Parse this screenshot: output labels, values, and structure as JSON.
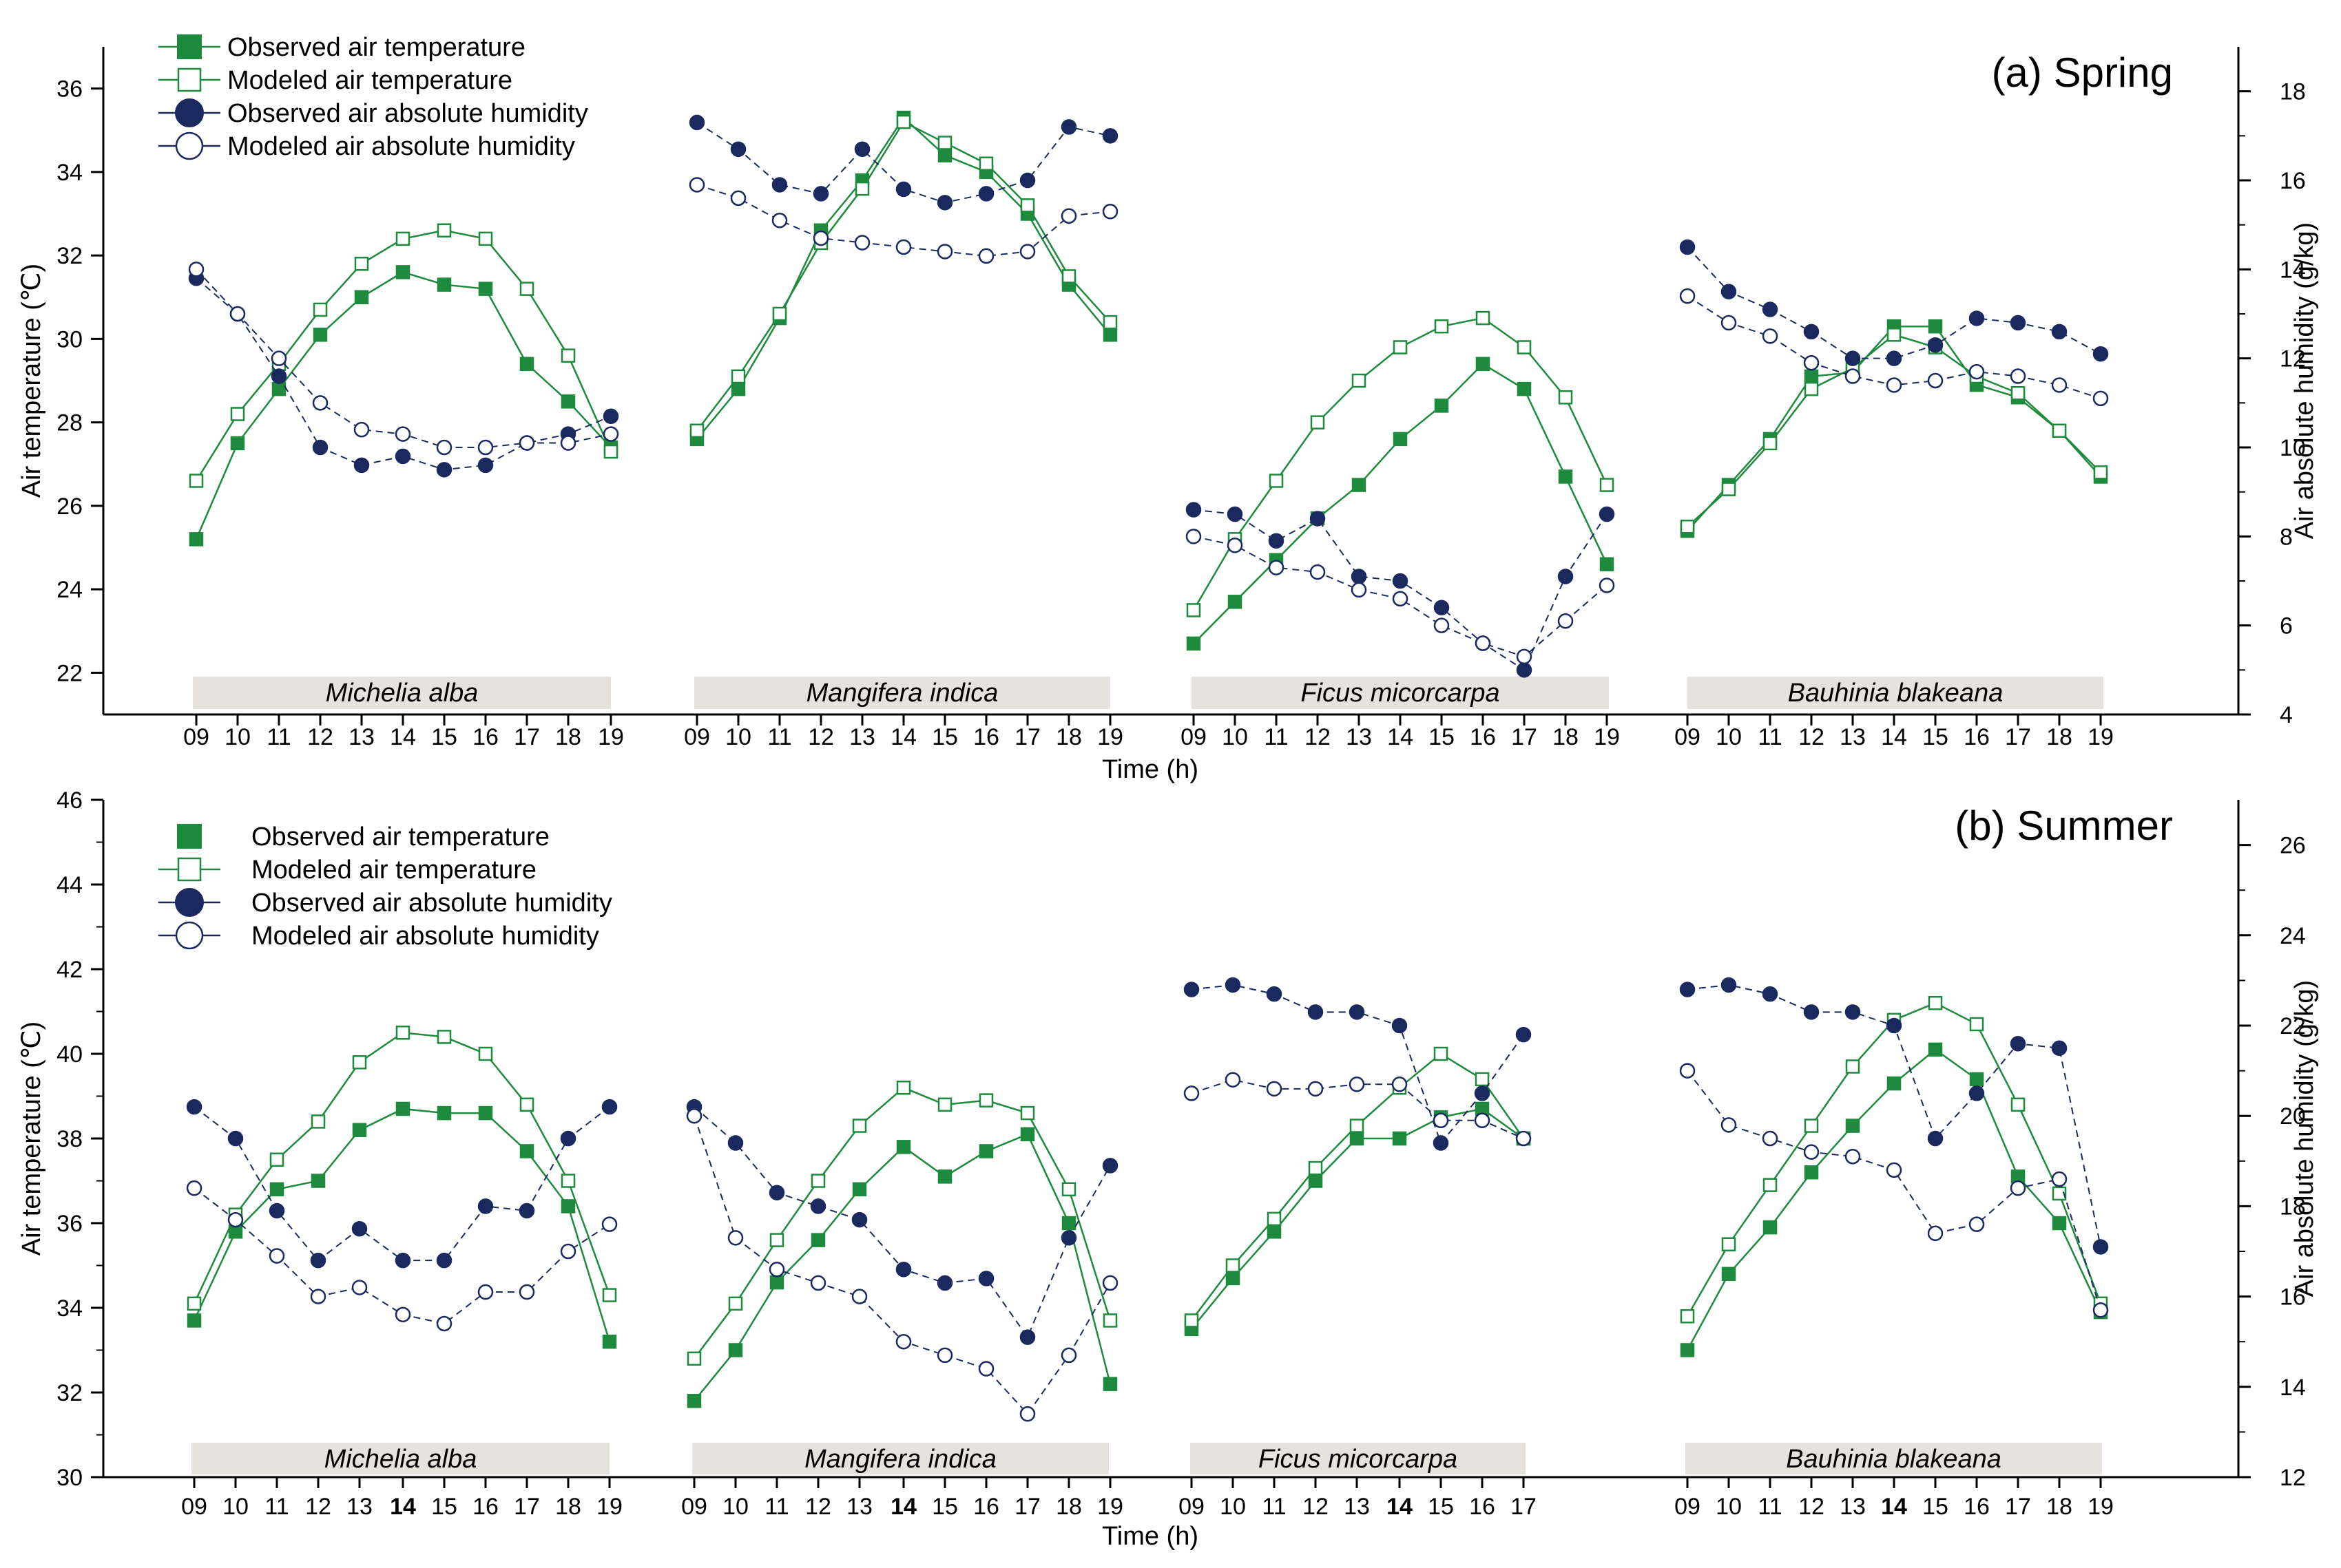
{
  "chart_data": [
    {
      "type": "line",
      "title": "(a) Spring",
      "xlabel": "Time (h)",
      "ylabel": "Air temperature (℃)",
      "y2label": "Air absolute humidity (g/kg)",
      "ylim": [
        21,
        37
      ],
      "y2lim": [
        4,
        19
      ],
      "yticks": [
        "22",
        "24",
        "26",
        "28",
        "30",
        "32",
        "34",
        "36"
      ],
      "y2ticks": [
        "4",
        "6",
        "8",
        "10",
        "12",
        "14",
        "16",
        "18"
      ],
      "legend": [
        "Observed air temperature",
        "Modeled air temperature",
        "Observed air absolute humidity",
        "Modeled air absolute humidity"
      ],
      "colors": {
        "temperature": "#1e8a3e",
        "humidity": "#1a2a5e"
      },
      "groups": [
        {
          "species": "Michelia alba",
          "x": [
            "09",
            "10",
            "11",
            "12",
            "13",
            "14",
            "15",
            "16",
            "17",
            "18",
            "19"
          ],
          "series": [
            {
              "name": "Observed air temperature",
              "values": [
                25.2,
                27.5,
                28.8,
                30.1,
                31.0,
                31.6,
                31.3,
                31.2,
                29.4,
                28.5,
                27.4
              ]
            },
            {
              "name": "Modeled air temperature",
              "values": [
                26.6,
                28.2,
                29.4,
                30.7,
                31.8,
                32.4,
                32.6,
                32.4,
                31.2,
                29.6,
                27.3
              ]
            },
            {
              "name": "Observed air absolute humidity",
              "values": [
                13.8,
                13.0,
                11.6,
                10.0,
                9.6,
                9.8,
                9.5,
                9.6,
                10.1,
                10.3,
                10.7
              ]
            },
            {
              "name": "Modeled air absolute humidity",
              "values": [
                14.0,
                13.0,
                12.0,
                11.0,
                10.4,
                10.3,
                10.0,
                10.0,
                10.1,
                10.1,
                10.3
              ]
            }
          ]
        },
        {
          "species": "Mangifera indica",
          "x": [
            "09",
            "10",
            "11",
            "12",
            "13",
            "14",
            "15",
            "16",
            "17",
            "18",
            "19"
          ],
          "series": [
            {
              "name": "Observed air temperature",
              "values": [
                27.6,
                28.8,
                30.5,
                32.6,
                33.8,
                35.3,
                34.4,
                34.0,
                33.0,
                31.3,
                30.1
              ]
            },
            {
              "name": "Modeled air temperature",
              "values": [
                27.8,
                29.1,
                30.6,
                32.3,
                33.6,
                35.2,
                34.7,
                34.2,
                33.2,
                31.5,
                30.4
              ]
            },
            {
              "name": "Observed air absolute humidity",
              "values": [
                17.3,
                16.7,
                15.9,
                15.7,
                16.7,
                15.8,
                15.5,
                15.7,
                16.0,
                17.2,
                17.0
              ]
            },
            {
              "name": "Modeled air absolute humidity",
              "values": [
                15.9,
                15.6,
                15.1,
                14.7,
                14.6,
                14.5,
                14.4,
                14.3,
                14.4,
                15.2,
                15.3
              ]
            }
          ]
        },
        {
          "species": "Ficus micorcarpa",
          "x": [
            "09",
            "10",
            "11",
            "12",
            "13",
            "14",
            "15",
            "16",
            "17",
            "18",
            "19"
          ],
          "series": [
            {
              "name": "Observed air temperature",
              "values": [
                22.7,
                23.7,
                24.7,
                25.7,
                26.5,
                27.6,
                28.4,
                29.4,
                28.8,
                26.7,
                24.6
              ]
            },
            {
              "name": "Modeled air temperature",
              "values": [
                23.5,
                25.2,
                26.6,
                28.0,
                29.0,
                29.8,
                30.3,
                30.5,
                29.8,
                28.6,
                26.5
              ]
            },
            {
              "name": "Observed air absolute humidity",
              "values": [
                8.6,
                8.5,
                7.9,
                8.4,
                7.1,
                7.0,
                6.4,
                5.6,
                5.0,
                7.1,
                8.5
              ]
            },
            {
              "name": "Modeled air absolute humidity",
              "values": [
                8.0,
                7.8,
                7.3,
                7.2,
                6.8,
                6.6,
                6.0,
                5.6,
                5.3,
                6.1,
                6.9
              ]
            }
          ]
        },
        {
          "species": "Bauhinia blakeana",
          "x": [
            "09",
            "10",
            "11",
            "12",
            "13",
            "14",
            "15",
            "16",
            "17",
            "18",
            "19"
          ],
          "series": [
            {
              "name": "Observed air temperature",
              "values": [
                25.4,
                26.5,
                27.6,
                29.1,
                29.2,
                30.3,
                30.3,
                28.9,
                28.6,
                27.8,
                26.7
              ]
            },
            {
              "name": "Modeled air temperature",
              "values": [
                25.5,
                26.4,
                27.5,
                28.8,
                29.3,
                30.1,
                29.8,
                29.1,
                28.7,
                27.8,
                26.8
              ]
            },
            {
              "name": "Observed air absolute humidity",
              "values": [
                14.5,
                13.5,
                13.1,
                12.6,
                12.0,
                12.0,
                12.3,
                12.9,
                12.8,
                12.6,
                12.1
              ]
            },
            {
              "name": "Modeled air absolute humidity",
              "values": [
                13.4,
                12.8,
                12.5,
                11.9,
                11.6,
                11.4,
                11.5,
                11.7,
                11.6,
                11.4,
                11.1
              ]
            }
          ]
        }
      ]
    },
    {
      "type": "line",
      "title": "(b) Summer",
      "xlabel": "Time (h)",
      "ylabel": "Air temperature (℃)",
      "y2label": "Air absolute humidity (g/kg)",
      "ylim": [
        30,
        46
      ],
      "y2lim": [
        12,
        27
      ],
      "yticks": [
        "30",
        "32",
        "34",
        "36",
        "38",
        "40",
        "42",
        "44",
        "46"
      ],
      "y2ticks": [
        "12",
        "14",
        "16",
        "18",
        "20",
        "22",
        "24",
        "26"
      ],
      "legend": [
        "Observed air temperature",
        "Modeled air temperature",
        "Observed air absolute humidity",
        "Modeled air absolute humidity"
      ],
      "colors": {
        "temperature": "#1e8a3e",
        "humidity": "#1a2a5e"
      },
      "groups": [
        {
          "species": "Michelia alba",
          "x": [
            "09",
            "10",
            "11",
            "12",
            "13",
            "14",
            "15",
            "16",
            "17",
            "18",
            "19"
          ],
          "series": [
            {
              "name": "Observed air temperature",
              "values": [
                33.7,
                35.8,
                36.8,
                37.0,
                38.2,
                38.7,
                38.6,
                38.6,
                37.7,
                36.4,
                33.2
              ]
            },
            {
              "name": "Modeled air temperature",
              "values": [
                34.1,
                36.2,
                37.5,
                38.4,
                39.8,
                40.5,
                40.4,
                40.0,
                38.8,
                37.0,
                34.3
              ]
            },
            {
              "name": "Observed air absolute humidity",
              "values": [
                20.2,
                19.5,
                17.9,
                16.8,
                17.5,
                16.8,
                16.8,
                18.0,
                17.9,
                19.5,
                20.2
              ]
            },
            {
              "name": "Modeled air absolute humidity",
              "values": [
                18.4,
                17.7,
                16.9,
                16.0,
                16.2,
                15.6,
                15.4,
                16.1,
                16.1,
                17.0,
                17.6
              ]
            }
          ]
        },
        {
          "species": "Mangifera indica",
          "x": [
            "09",
            "10",
            "11",
            "12",
            "13",
            "14",
            "15",
            "16",
            "17",
            "18",
            "19"
          ],
          "series": [
            {
              "name": "Observed air temperature",
              "values": [
                31.8,
                33.0,
                34.6,
                35.6,
                36.8,
                37.8,
                37.1,
                37.7,
                38.1,
                36.0,
                32.2
              ]
            },
            {
              "name": "Modeled air temperature",
              "values": [
                32.8,
                34.1,
                35.6,
                37.0,
                38.3,
                39.2,
                38.8,
                38.9,
                38.6,
                36.8,
                33.7
              ]
            },
            {
              "name": "Observed air absolute humidity",
              "values": [
                20.2,
                19.4,
                18.3,
                18.0,
                17.7,
                16.6,
                16.3,
                16.4,
                15.1,
                17.3,
                18.9
              ]
            },
            {
              "name": "Modeled air absolute humidity",
              "values": [
                20.0,
                17.3,
                16.6,
                16.3,
                16.0,
                15.0,
                14.7,
                14.4,
                13.4,
                14.7,
                16.3
              ]
            }
          ]
        },
        {
          "species": "Ficus micorcarpa",
          "x": [
            "09",
            "10",
            "11",
            "12",
            "13",
            "14",
            "15",
            "16",
            "17"
          ],
          "series": [
            {
              "name": "Observed air temperature",
              "values": [
                33.5,
                34.7,
                35.8,
                37.0,
                38.0,
                38.0,
                38.5,
                38.7,
                38.0
              ]
            },
            {
              "name": "Modeled air temperature",
              "values": [
                33.7,
                35.0,
                36.1,
                37.3,
                38.3,
                39.2,
                40.0,
                39.4,
                38.0
              ]
            },
            {
              "name": "Observed air absolute humidity",
              "values": [
                22.8,
                22.9,
                22.7,
                22.3,
                22.3,
                22.0,
                19.4,
                20.5,
                21.8
              ]
            },
            {
              "name": "Modeled air absolute humidity",
              "values": [
                20.5,
                20.8,
                20.6,
                20.6,
                20.7,
                20.7,
                19.9,
                19.9,
                19.5
              ]
            }
          ]
        },
        {
          "species": "Bauhinia blakeana",
          "x": [
            "09",
            "10",
            "11",
            "12",
            "13",
            "14",
            "15",
            "16",
            "17",
            "18",
            "19"
          ],
          "series": [
            {
              "name": "Observed air temperature",
              "values": [
                33.0,
                34.8,
                35.9,
                37.2,
                38.3,
                39.3,
                40.1,
                39.4,
                37.1,
                36.0,
                33.9
              ]
            },
            {
              "name": "Modeled air temperature",
              "values": [
                33.8,
                35.5,
                36.9,
                38.3,
                39.7,
                40.8,
                41.2,
                40.7,
                38.8,
                36.7,
                34.1
              ]
            },
            {
              "name": "Observed air absolute humidity",
              "values": [
                22.8,
                22.9,
                22.7,
                22.3,
                22.3,
                22.0,
                19.5,
                20.5,
                21.6,
                21.5,
                17.1
              ]
            },
            {
              "name": "Modeled air absolute humidity",
              "values": [
                21.0,
                19.8,
                19.5,
                19.2,
                19.1,
                18.8,
                17.4,
                17.6,
                18.4,
                18.6,
                15.7
              ]
            }
          ]
        }
      ]
    }
  ]
}
